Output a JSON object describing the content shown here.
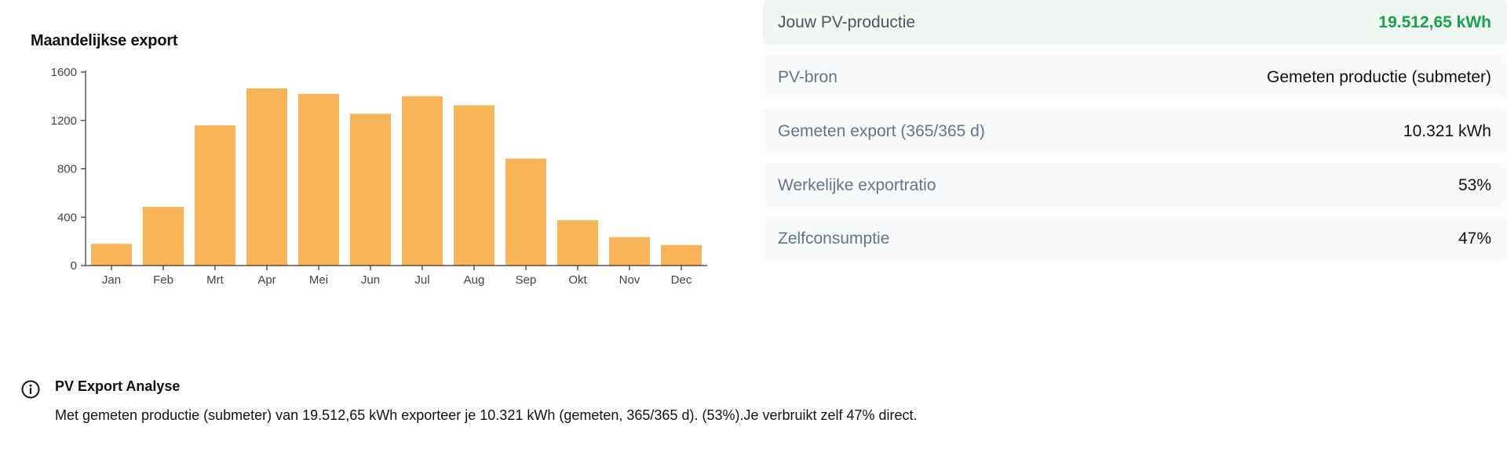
{
  "chart": {
    "title": "Maandelijkse export"
  },
  "chart_data": {
    "type": "bar",
    "title": "Maandelijkse export",
    "categories": [
      "Jan",
      "Feb",
      "Mrt",
      "Apr",
      "Mei",
      "Jun",
      "Jul",
      "Aug",
      "Sep",
      "Okt",
      "Nov",
      "Dec"
    ],
    "values": [
      180,
      485,
      1160,
      1465,
      1420,
      1255,
      1400,
      1325,
      885,
      375,
      235,
      170
    ],
    "yticks": [
      "0",
      "400",
      "800",
      "1200",
      "1600"
    ],
    "ylim": [
      0,
      1600
    ],
    "bar_color": "#f7b358",
    "grid": false,
    "xlabel": "",
    "ylabel": ""
  },
  "stats": [
    {
      "label": "Jouw PV-productie",
      "value": "19.512,65 kWh"
    },
    {
      "label": "PV-bron",
      "value": "Gemeten productie (submeter)"
    },
    {
      "label": "Gemeten export (365/365 d)",
      "value": "10.321 kWh"
    },
    {
      "label": "Werkelijke exportratio",
      "value": "53%"
    },
    {
      "label": "Zelfconsumptie",
      "value": "47%"
    }
  ],
  "info": {
    "icon": "info-icon",
    "title": "PV Export Analyse",
    "text": "Met gemeten productie (submeter) van 19.512,65 kWh exporteer je 10.321 kWh (gemeten, 365/365 d). (53%).Je verbruikt zelf 47% direct."
  },
  "colors": {
    "accent_green": "#16a34a",
    "row_bg": "#f8fafc",
    "highlight_bg": "#f0f7f2",
    "muted_text": "#64748b"
  }
}
